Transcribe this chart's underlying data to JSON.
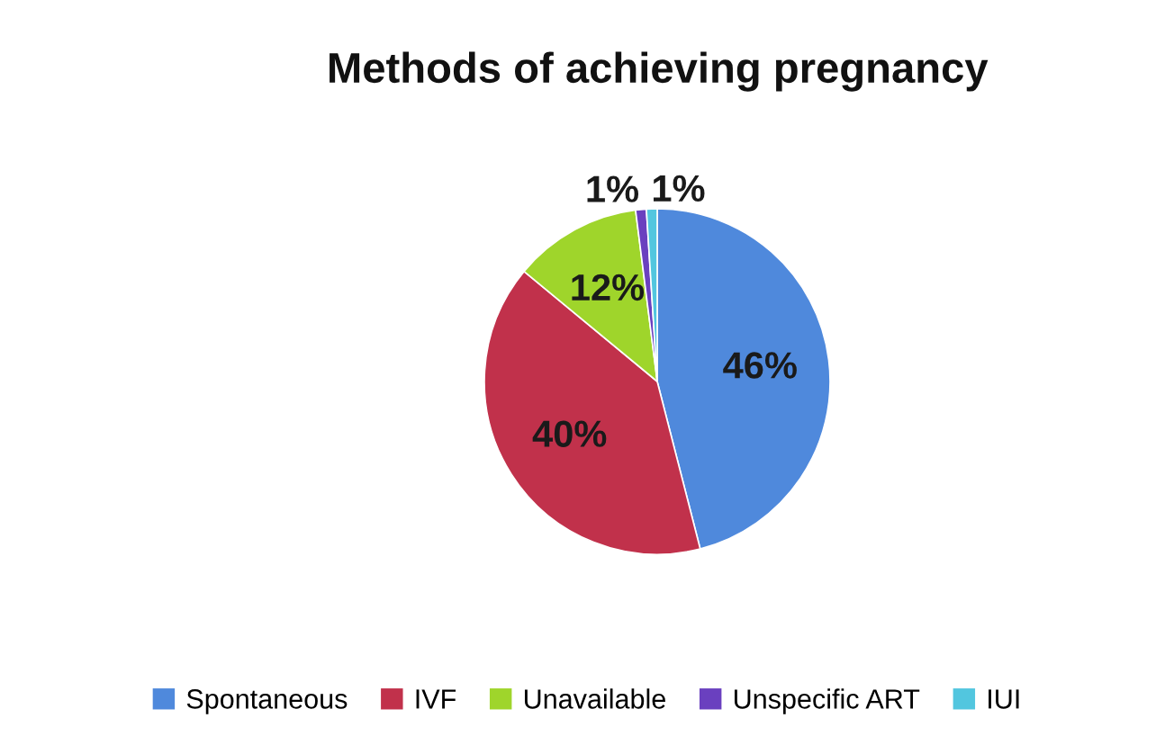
{
  "chart_data": {
    "type": "pie",
    "title": "Methods of achieving pregnancy",
    "categories": [
      "Spontaneous",
      "IVF",
      "Unavailable",
      "Unspecific ART",
      "IUI"
    ],
    "values": [
      46,
      40,
      12,
      1,
      1
    ],
    "colors": [
      "#4f89dc",
      "#c1314b",
      "#9fd52b",
      "#6a40bf",
      "#52c6df"
    ],
    "value_labels": [
      "46%",
      "40%",
      "12%",
      "1%",
      "1%"
    ],
    "legend": "bottom"
  }
}
